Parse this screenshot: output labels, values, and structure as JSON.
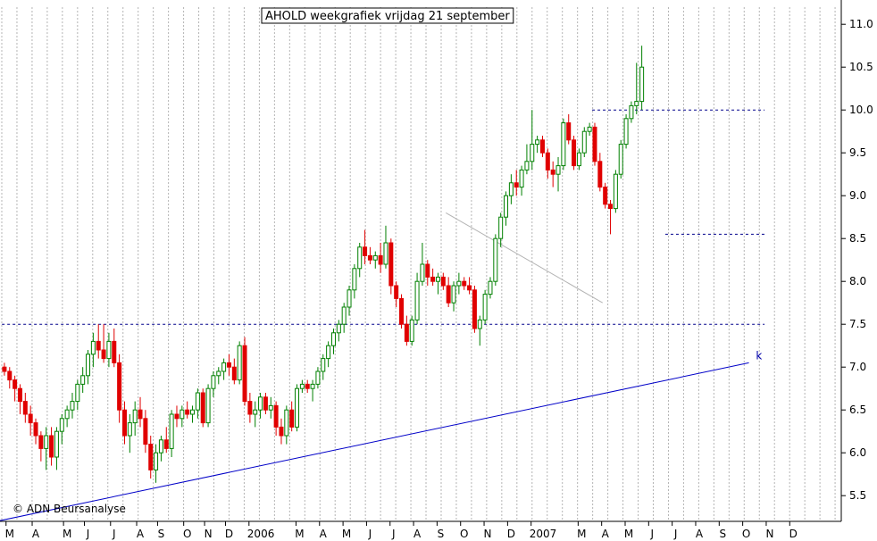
{
  "chart_data": {
    "type": "candlestick",
    "title": "AHOLD weekgrafiek vrijdag 21 september",
    "copyright": "© ADN Beursanalyse",
    "colors": {
      "up": "#008000",
      "down": "#e00000",
      "grid": "#b4b4b4",
      "trend": "#0000c8",
      "resist": "#00008c",
      "channel": "#b4b4b4"
    },
    "ylim": [
      5.2,
      11.2
    ],
    "yticks": [
      5.5,
      6.0,
      6.5,
      7.0,
      7.5,
      8.0,
      8.5,
      9.0,
      9.5,
      10.0,
      10.5,
      11.0
    ],
    "ytick_labels": [
      "5.5",
      "6.0",
      "6.5",
      "7.0",
      "7.5",
      "8.0",
      "8.5",
      "9.0",
      "9.5",
      "10.0",
      "10.5",
      "11.0"
    ],
    "xlim": [
      0,
      160
    ],
    "month_ticks": [
      {
        "label": "M",
        "x": 1.5
      },
      {
        "label": "A",
        "x": 6.5
      },
      {
        "label": "M",
        "x": 12.5
      },
      {
        "label": "J",
        "x": 16.5
      },
      {
        "label": "J",
        "x": 21.5
      },
      {
        "label": "A",
        "x": 26.5
      },
      {
        "label": "S",
        "x": 30.5
      },
      {
        "label": "O",
        "x": 35.5
      },
      {
        "label": "N",
        "x": 39.5
      },
      {
        "label": "D",
        "x": 43.5
      },
      {
        "label": "2006",
        "x": 48.0
      },
      {
        "label": "M",
        "x": 57.0
      },
      {
        "label": "A",
        "x": 61.5
      },
      {
        "label": "M",
        "x": 66.0
      },
      {
        "label": "J",
        "x": 70.5
      },
      {
        "label": "J",
        "x": 75.0
      },
      {
        "label": "A",
        "x": 79.5
      },
      {
        "label": "S",
        "x": 84.0
      },
      {
        "label": "O",
        "x": 88.5
      },
      {
        "label": "N",
        "x": 93.0
      },
      {
        "label": "D",
        "x": 97.5
      },
      {
        "label": "2007",
        "x": 102.0
      },
      {
        "label": "M",
        "x": 111.0
      },
      {
        "label": "A",
        "x": 115.5
      },
      {
        "label": "M",
        "x": 120.0
      },
      {
        "label": "J",
        "x": 124.5
      },
      {
        "label": "J",
        "x": 129.0
      },
      {
        "label": "A",
        "x": 133.5
      },
      {
        "label": "S",
        "x": 138.0
      },
      {
        "label": "O",
        "x": 142.5
      },
      {
        "label": "N",
        "x": 147.0
      },
      {
        "label": "D",
        "x": 151.5
      }
    ],
    "candles": [
      [
        7.0,
        7.05,
        6.9,
        6.95
      ],
      [
        6.95,
        7.0,
        6.75,
        6.85
      ],
      [
        6.85,
        6.9,
        6.6,
        6.75
      ],
      [
        6.75,
        6.8,
        6.45,
        6.6
      ],
      [
        6.6,
        6.7,
        6.35,
        6.45
      ],
      [
        6.45,
        6.55,
        6.2,
        6.35
      ],
      [
        6.35,
        6.4,
        6.1,
        6.2
      ],
      [
        6.2,
        6.25,
        5.9,
        6.05
      ],
      [
        6.05,
        6.3,
        5.8,
        6.2
      ],
      [
        6.2,
        6.3,
        5.85,
        5.95
      ],
      [
        5.95,
        6.3,
        5.8,
        6.25
      ],
      [
        6.25,
        6.45,
        6.1,
        6.4
      ],
      [
        6.4,
        6.55,
        6.3,
        6.5
      ],
      [
        6.5,
        6.7,
        6.4,
        6.6
      ],
      [
        6.6,
        6.85,
        6.5,
        6.8
      ],
      [
        6.8,
        7.0,
        6.7,
        6.9
      ],
      [
        6.9,
        7.2,
        6.8,
        7.15
      ],
      [
        7.15,
        7.4,
        7.0,
        7.3
      ],
      [
        7.3,
        7.5,
        7.1,
        7.2
      ],
      [
        7.2,
        7.5,
        7.05,
        7.1
      ],
      [
        7.1,
        7.4,
        7.0,
        7.3
      ],
      [
        7.3,
        7.45,
        7.0,
        7.05
      ],
      [
        7.05,
        7.15,
        6.35,
        6.5
      ],
      [
        6.5,
        6.6,
        6.1,
        6.2
      ],
      [
        6.2,
        6.45,
        6.0,
        6.35
      ],
      [
        6.35,
        6.6,
        6.2,
        6.5
      ],
      [
        6.5,
        6.65,
        6.3,
        6.4
      ],
      [
        6.4,
        6.5,
        6.0,
        6.1
      ],
      [
        6.1,
        6.2,
        5.7,
        5.8
      ],
      [
        5.8,
        6.1,
        5.65,
        6.0
      ],
      [
        6.0,
        6.2,
        5.9,
        6.15
      ],
      [
        6.15,
        6.3,
        6.0,
        6.05
      ],
      [
        6.05,
        6.5,
        5.95,
        6.45
      ],
      [
        6.45,
        6.55,
        6.3,
        6.4
      ],
      [
        6.4,
        6.55,
        6.3,
        6.5
      ],
      [
        6.5,
        6.6,
        6.4,
        6.45
      ],
      [
        6.45,
        6.55,
        6.35,
        6.5
      ],
      [
        6.5,
        6.75,
        6.4,
        6.7
      ],
      [
        6.7,
        6.75,
        6.3,
        6.35
      ],
      [
        6.35,
        6.8,
        6.3,
        6.75
      ],
      [
        6.75,
        6.95,
        6.65,
        6.9
      ],
      [
        6.9,
        7.0,
        6.8,
        6.95
      ],
      [
        6.95,
        7.1,
        6.85,
        7.05
      ],
      [
        7.05,
        7.15,
        6.9,
        7.0
      ],
      [
        7.0,
        7.1,
        6.8,
        6.85
      ],
      [
        6.85,
        7.3,
        6.8,
        7.25
      ],
      [
        7.25,
        7.35,
        6.55,
        6.6
      ],
      [
        6.6,
        6.7,
        6.35,
        6.45
      ],
      [
        6.45,
        6.6,
        6.3,
        6.5
      ],
      [
        6.5,
        6.7,
        6.4,
        6.65
      ],
      [
        6.65,
        6.7,
        6.45,
        6.5
      ],
      [
        6.5,
        6.65,
        6.4,
        6.55
      ],
      [
        6.55,
        6.6,
        6.2,
        6.3
      ],
      [
        6.3,
        6.4,
        6.1,
        6.2
      ],
      [
        6.2,
        6.55,
        6.1,
        6.5
      ],
      [
        6.5,
        6.6,
        6.25,
        6.3
      ],
      [
        6.3,
        6.8,
        6.25,
        6.75
      ],
      [
        6.75,
        6.85,
        6.7,
        6.8
      ],
      [
        6.8,
        6.85,
        6.7,
        6.75
      ],
      [
        6.75,
        6.85,
        6.6,
        6.8
      ],
      [
        6.8,
        7.0,
        6.75,
        6.95
      ],
      [
        6.95,
        7.15,
        6.85,
        7.1
      ],
      [
        7.1,
        7.3,
        7.0,
        7.25
      ],
      [
        7.25,
        7.45,
        7.15,
        7.4
      ],
      [
        7.4,
        7.55,
        7.3,
        7.5
      ],
      [
        7.5,
        7.75,
        7.4,
        7.7
      ],
      [
        7.7,
        7.95,
        7.6,
        7.9
      ],
      [
        7.9,
        8.2,
        7.8,
        8.15
      ],
      [
        8.15,
        8.45,
        8.05,
        8.4
      ],
      [
        8.4,
        8.6,
        8.2,
        8.3
      ],
      [
        8.3,
        8.4,
        8.2,
        8.25
      ],
      [
        8.25,
        8.35,
        8.15,
        8.3
      ],
      [
        8.3,
        8.45,
        8.1,
        8.2
      ],
      [
        8.2,
        8.65,
        8.15,
        8.45
      ],
      [
        8.45,
        8.5,
        7.85,
        7.95
      ],
      [
        7.95,
        8.0,
        7.7,
        7.8
      ],
      [
        7.8,
        7.85,
        7.45,
        7.5
      ],
      [
        7.5,
        7.6,
        7.25,
        7.3
      ],
      [
        7.3,
        7.6,
        7.25,
        7.55
      ],
      [
        7.55,
        8.1,
        7.5,
        8.0
      ],
      [
        8.0,
        8.45,
        7.95,
        8.2
      ],
      [
        8.2,
        8.25,
        7.95,
        8.05
      ],
      [
        8.05,
        8.15,
        7.95,
        8.0
      ],
      [
        8.0,
        8.1,
        7.85,
        8.05
      ],
      [
        8.05,
        8.1,
        7.9,
        7.95
      ],
      [
        7.95,
        8.05,
        7.7,
        7.75
      ],
      [
        7.75,
        8.0,
        7.65,
        7.95
      ],
      [
        7.95,
        8.1,
        7.85,
        8.0
      ],
      [
        8.0,
        8.05,
        7.9,
        7.95
      ],
      [
        7.95,
        8.05,
        7.85,
        7.9
      ],
      [
        7.9,
        7.95,
        7.4,
        7.45
      ],
      [
        7.45,
        7.6,
        7.25,
        7.55
      ],
      [
        7.55,
        7.9,
        7.5,
        7.85
      ],
      [
        7.85,
        8.05,
        7.8,
        8.0
      ],
      [
        8.0,
        8.55,
        7.95,
        8.5
      ],
      [
        8.5,
        8.8,
        8.4,
        8.75
      ],
      [
        8.75,
        9.05,
        8.65,
        9.0
      ],
      [
        9.0,
        9.25,
        8.9,
        9.15
      ],
      [
        9.15,
        9.3,
        9.0,
        9.1
      ],
      [
        9.1,
        9.35,
        9.0,
        9.3
      ],
      [
        9.3,
        9.6,
        9.25,
        9.4
      ],
      [
        9.4,
        10.0,
        9.3,
        9.6
      ],
      [
        9.6,
        9.7,
        9.5,
        9.65
      ],
      [
        9.65,
        9.7,
        9.45,
        9.5
      ],
      [
        9.5,
        9.55,
        9.2,
        9.3
      ],
      [
        9.3,
        9.4,
        9.1,
        9.25
      ],
      [
        9.25,
        9.45,
        9.05,
        9.35
      ],
      [
        9.35,
        9.9,
        9.3,
        9.85
      ],
      [
        9.85,
        9.95,
        9.6,
        9.65
      ],
      [
        9.65,
        9.7,
        9.3,
        9.35
      ],
      [
        9.35,
        9.55,
        9.3,
        9.5
      ],
      [
        9.5,
        9.8,
        9.45,
        9.75
      ],
      [
        9.75,
        9.85,
        9.7,
        9.8
      ],
      [
        9.8,
        9.85,
        9.35,
        9.4
      ],
      [
        9.4,
        9.5,
        9.05,
        9.1
      ],
      [
        9.1,
        9.15,
        8.85,
        8.9
      ],
      [
        8.9,
        8.95,
        8.55,
        8.85
      ],
      [
        8.85,
        9.3,
        8.8,
        9.25
      ],
      [
        9.25,
        9.65,
        9.2,
        9.6
      ],
      [
        9.6,
        9.95,
        9.55,
        9.9
      ],
      [
        9.9,
        10.1,
        9.85,
        10.05
      ],
      [
        10.05,
        10.55,
        9.95,
        10.1
      ],
      [
        10.1,
        10.75,
        10.0,
        10.5
      ]
    ],
    "lines": [
      {
        "name": "support-trend",
        "x1": -1,
        "y1": 5.2,
        "x2": 143,
        "y2": 7.05
      },
      {
        "name": "resistance-7-5",
        "x1": -1,
        "y1": 7.5,
        "x2": 146,
        "y2": 7.5,
        "dashed": true
      },
      {
        "name": "resistance-10",
        "x1": 113,
        "y1": 10.0,
        "x2": 146,
        "y2": 10.0,
        "dashed": true
      },
      {
        "name": "support-8-55",
        "x1": 127,
        "y1": 8.55,
        "x2": 146,
        "y2": 8.55,
        "dashed": true
      },
      {
        "name": "channel-top",
        "x1": 85,
        "y1": 8.8,
        "x2": 115,
        "y2": 7.75
      }
    ],
    "annotation": {
      "text": "k",
      "x": 144,
      "y": 7.05
    }
  }
}
